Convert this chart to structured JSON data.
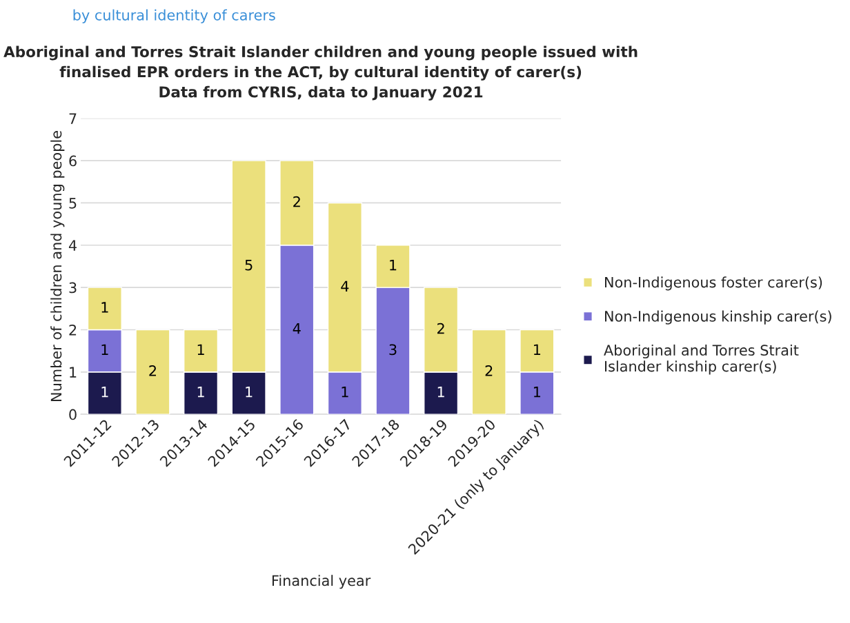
{
  "chart_data": {
    "type": "bar",
    "stacked": true,
    "title": "Aboriginal and Torres Strait Islander children and young people issued with\nfinalised EPR orders in the ACT, by cultural identity of carer(s)\nData from CYRIS, data to January 2021",
    "xlabel": "Financial year",
    "ylabel": "Number of children and young people",
    "categories": [
      "2011-12",
      "2012-13",
      "2013-14",
      "2014-15",
      "2015-16",
      "2016-17",
      "2017-18",
      "2018-19",
      "2019-20",
      "2020-21 (only to January)"
    ],
    "series": [
      {
        "name": "Aboriginal and Torres Strait\nIslander kinship carer(s)",
        "color": "#1c1a4e",
        "values": [
          1,
          0,
          1,
          1,
          0,
          0,
          0,
          1,
          0,
          0
        ],
        "value_labels": [
          "1",
          null,
          "1",
          "1",
          null,
          null,
          null,
          "1",
          null,
          null
        ]
      },
      {
        "name": "Non-Indigenous kinship carer(s)",
        "color": "#7b71d6",
        "values": [
          1,
          0,
          0,
          0,
          4,
          1,
          3,
          0,
          0,
          1
        ],
        "value_labels": [
          "1",
          null,
          null,
          null,
          "4",
          "1",
          "3",
          null,
          null,
          "1"
        ]
      },
      {
        "name": "Non-Indigenous foster carer(s)",
        "color": "#ebe07c",
        "values": [
          1,
          2,
          1,
          5,
          2,
          4,
          1,
          2,
          2,
          1
        ],
        "value_labels": [
          "1",
          "2",
          "1",
          "5",
          "2",
          "4",
          "1",
          "2",
          "2",
          "1"
        ]
      }
    ],
    "ylim": [
      0,
      7
    ],
    "yticks": [
      0,
      1,
      2,
      3,
      4,
      5,
      6,
      7
    ],
    "grid": "y",
    "legend": "right",
    "annotations": [
      "by cultural identity of carers"
    ]
  }
}
